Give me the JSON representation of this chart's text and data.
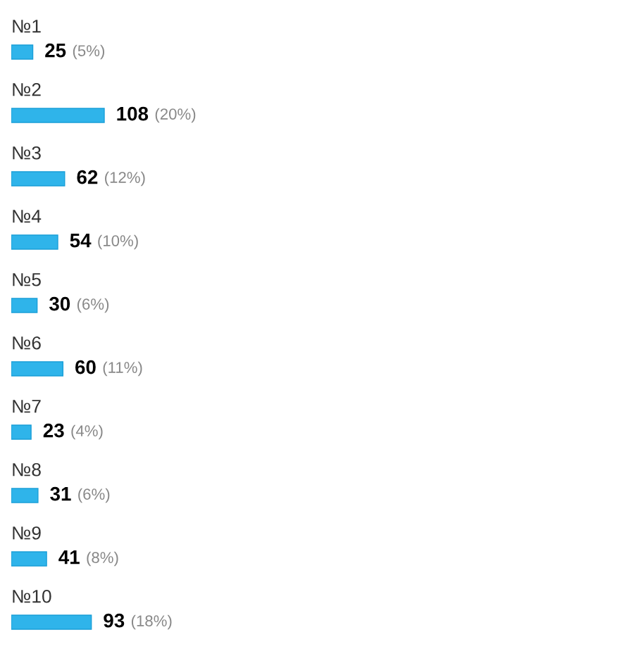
{
  "chart_data": {
    "type": "bar",
    "orientation": "horizontal",
    "categories": [
      "№1",
      "№2",
      "№3",
      "№4",
      "№5",
      "№6",
      "№7",
      "№8",
      "№9",
      "№10"
    ],
    "values": [
      25,
      108,
      62,
      54,
      30,
      60,
      23,
      31,
      41,
      93
    ],
    "value_labels": [
      "25 (5%)",
      "108 (20%)",
      "62 (12%)",
      "54 (10%)",
      "30 (6%)",
      "60 (11%)",
      "23 (4%)",
      "31 (6%)",
      "41 (8%)",
      "93 (18%)"
    ],
    "color": "#2fb4ea"
  }
}
